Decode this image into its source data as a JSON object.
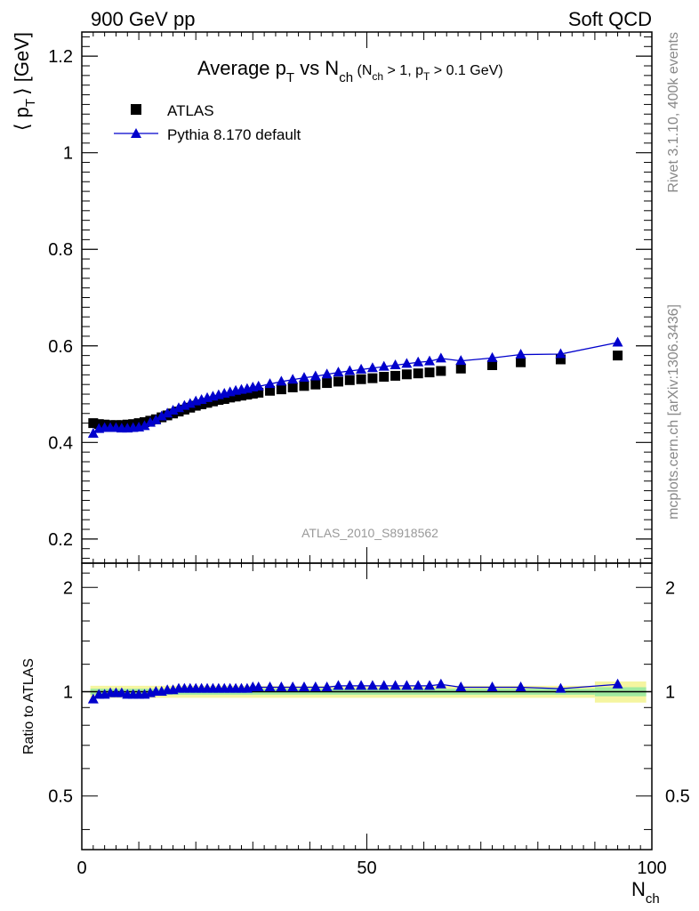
{
  "header": {
    "left": "900 GeV pp",
    "right": "Soft QCD"
  },
  "side_labels": {
    "top": "Rivet 3.1.10,  400k events",
    "bottom": "mcplots.cern.ch [arXiv:1306.3436]"
  },
  "colors": {
    "data": "#000000",
    "mc": "#0000cc",
    "band_inner": "#a0eaa0",
    "band_outer": "#f5f5a0"
  },
  "chart_data": [
    {
      "type": "scatter",
      "panel": "main",
      "title": {
        "prefix": "Average p",
        "sub1": "T",
        "mid": " vs N",
        "sub2": "ch",
        "cut_a": " (N",
        "cut_a_sub": "ch",
        "cut_b": " > 1, p",
        "cut_b_sub": "T",
        "cut_c": " > 0.1 GeV)"
      },
      "ylabel": "⟨ p   ⟩ [GeV]",
      "ylabel_parts": {
        "open": "⟨ p",
        "sub": "T",
        "close": "⟩  [GeV]"
      },
      "xlim": [
        0,
        100
      ],
      "ylim": [
        0.15,
        1.25
      ],
      "yticks": [
        0.2,
        0.4,
        0.6,
        0.8,
        1.0,
        1.2
      ],
      "ytick_labels": [
        "0.2",
        "0.4",
        "0.6",
        "0.8",
        "1",
        "1.2"
      ],
      "analysis_label": "ATLAS_2010_S8918562",
      "legend_position": "top-left",
      "series": [
        {
          "name": "ATLAS",
          "marker": "square",
          "x": [
            2,
            3,
            4,
            5,
            6,
            7,
            8,
            9,
            10,
            11,
            12,
            13,
            14,
            15,
            16,
            17,
            18,
            19,
            20,
            21,
            22,
            23,
            24,
            25,
            26,
            27,
            28,
            29,
            30,
            31,
            33,
            35,
            37,
            39,
            41,
            43,
            45,
            47,
            49,
            51,
            53,
            55,
            57,
            59,
            61,
            63,
            66.5,
            72,
            77,
            84,
            94
          ],
          "y": [
            0.44,
            0.438,
            0.437,
            0.436,
            0.436,
            0.436,
            0.437,
            0.438,
            0.44,
            0.442,
            0.445,
            0.448,
            0.452,
            0.456,
            0.46,
            0.464,
            0.468,
            0.472,
            0.476,
            0.479,
            0.482,
            0.485,
            0.488,
            0.49,
            0.493,
            0.495,
            0.497,
            0.499,
            0.501,
            0.503,
            0.507,
            0.51,
            0.514,
            0.517,
            0.52,
            0.523,
            0.526,
            0.529,
            0.531,
            0.533,
            0.536,
            0.538,
            0.541,
            0.543,
            0.545,
            0.548,
            0.553,
            0.56,
            0.566,
            0.572,
            0.58
          ]
        },
        {
          "name": "Pythia 8.170 default",
          "marker": "triangle",
          "x": [
            2,
            3,
            4,
            5,
            6,
            7,
            8,
            9,
            10,
            11,
            12,
            13,
            14,
            15,
            16,
            17,
            18,
            19,
            20,
            21,
            22,
            23,
            24,
            25,
            26,
            27,
            28,
            29,
            30,
            31,
            33,
            35,
            37,
            39,
            41,
            43,
            45,
            47,
            49,
            51,
            53,
            55,
            57,
            59,
            61,
            63,
            66.5,
            72,
            77,
            84,
            94
          ],
          "y": [
            0.418,
            0.428,
            0.43,
            0.43,
            0.43,
            0.429,
            0.429,
            0.43,
            0.431,
            0.434,
            0.441,
            0.446,
            0.454,
            0.46,
            0.466,
            0.471,
            0.476,
            0.48,
            0.485,
            0.488,
            0.492,
            0.495,
            0.498,
            0.501,
            0.504,
            0.507,
            0.509,
            0.511,
            0.514,
            0.516,
            0.521,
            0.526,
            0.53,
            0.534,
            0.537,
            0.541,
            0.545,
            0.548,
            0.551,
            0.554,
            0.557,
            0.56,
            0.563,
            0.566,
            0.568,
            0.574,
            0.569,
            0.575,
            0.582,
            0.583,
            0.607
          ]
        }
      ]
    },
    {
      "type": "line",
      "panel": "ratio",
      "ylabel": "Ratio to ATLAS",
      "xlabel": "N",
      "xlabel_sub": "ch",
      "xlim": [
        0,
        100
      ],
      "ylim": [
        0.35,
        2.35
      ],
      "xticks": [
        0,
        50,
        100
      ],
      "xtick_labels": [
        "0",
        "50",
        "100"
      ],
      "yticks": [
        0.5,
        1,
        2
      ],
      "ytick_labels": [
        "0.5",
        "1",
        "2"
      ],
      "reference_line": 1,
      "band": {
        "x_edges": [
          1.5,
          90,
          99
        ],
        "inner_half_width": [
          0.02,
          0.03
        ],
        "outer_half_width": [
          0.04,
          0.07
        ]
      },
      "series": [
        {
          "name": "Pythia 8.170 default",
          "x": [
            2,
            3,
            4,
            5,
            6,
            7,
            8,
            9,
            10,
            11,
            12,
            13,
            14,
            15,
            16,
            17,
            18,
            19,
            20,
            21,
            22,
            23,
            24,
            25,
            26,
            27,
            28,
            29,
            30,
            31,
            33,
            35,
            37,
            39,
            41,
            43,
            45,
            47,
            49,
            51,
            53,
            55,
            57,
            59,
            61,
            63,
            66.5,
            72,
            77,
            84,
            94
          ],
          "y": [
            0.95,
            0.98,
            0.98,
            0.99,
            0.99,
            0.99,
            0.98,
            0.98,
            0.98,
            0.98,
            0.99,
            1.0,
            1.0,
            1.01,
            1.01,
            1.02,
            1.02,
            1.02,
            1.02,
            1.02,
            1.02,
            1.02,
            1.02,
            1.02,
            1.02,
            1.02,
            1.02,
            1.02,
            1.03,
            1.03,
            1.03,
            1.03,
            1.03,
            1.03,
            1.03,
            1.03,
            1.04,
            1.04,
            1.04,
            1.04,
            1.04,
            1.04,
            1.04,
            1.04,
            1.04,
            1.05,
            1.03,
            1.03,
            1.03,
            1.02,
            1.05
          ]
        }
      ]
    }
  ]
}
